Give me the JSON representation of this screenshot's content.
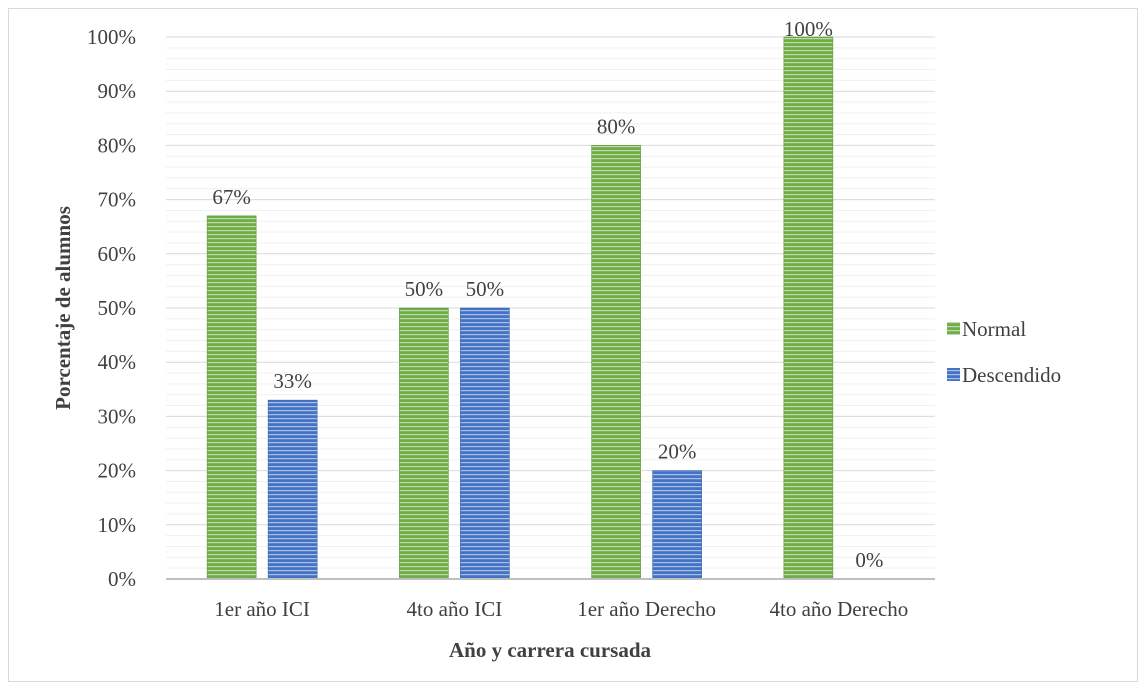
{
  "chart_data": {
    "type": "bar",
    "xlabel": "Año y carrera cursada",
    "ylabel": "Porcentaje de alumnos",
    "categories": [
      "1er año ICI",
      "4to año ICI",
      "1er año Derecho",
      "4to año Derecho"
    ],
    "series": [
      {
        "name": "Normal",
        "values": [
          67,
          50,
          80,
          100
        ],
        "labels": [
          "67%",
          "50%",
          "80%",
          "100%"
        ],
        "color": "#70ad47"
      },
      {
        "name": "Descendido",
        "values": [
          33,
          50,
          20,
          0
        ],
        "labels": [
          "33%",
          "50%",
          "20%",
          "0%"
        ],
        "color": "#4472c4"
      }
    ],
    "ylim": [
      0,
      100
    ],
    "yticks": [
      "0%",
      "10%",
      "20%",
      "30%",
      "40%",
      "50%",
      "60%",
      "70%",
      "80%",
      "90%",
      "100%"
    ],
    "grid": true,
    "legend_position": "right"
  }
}
